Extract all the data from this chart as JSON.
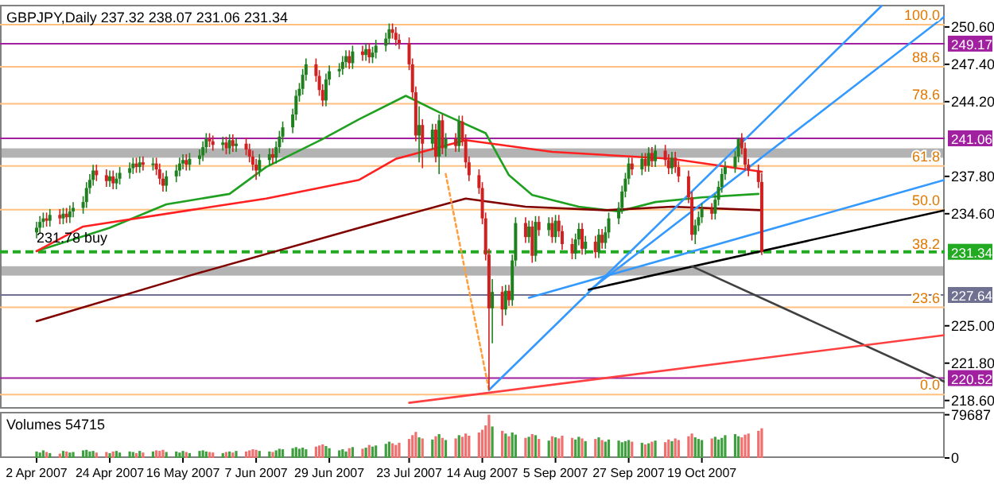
{
  "chart_data": [
    {
      "type": "candlestick",
      "title": "GBPJPY,Daily  237.32 238.07 231.06 231.34",
      "tick_labels": "y",
      "xlim": [
        "2007-03-22",
        "2007-12-31"
      ],
      "ylim": [
        217.9,
        252.5
      ],
      "y2lim": [
        -3.79,
        105.36
      ],
      "y2ticks": [
        {
          "value": 100,
          "label": "100.0"
        },
        88.6,
        78.6,
        61.8,
        {
          "value": 50,
          "label": "50.0"
        },
        38.2,
        23.6,
        {
          "value": 0,
          "label": "0.0"
        }
      ],
      "yticks": [
        {
          "value": 250.6,
          "label": "250.60"
        },
        {
          "value": 247.4,
          "label": "247.40"
        },
        {
          "value": 244.2,
          "label": "244.20"
        },
        {
          "value": 237.8,
          "label": "237.80"
        },
        {
          "value": 234.6,
          "label": "234.60"
        },
        {
          "value": 225.0,
          "label": "225.00"
        },
        {
          "value": 221.8,
          "label": "221.80"
        },
        {
          "value": 218.6,
          "label": "218.60"
        }
      ],
      "x": [
        "2007-04-02",
        "2007-04-03",
        "2007-04-04",
        "2007-04-05",
        "2007-04-06",
        "2007-04-09",
        "2007-04-10",
        "2007-04-11",
        "2007-04-12",
        "2007-04-13",
        "2007-04-16",
        "2007-04-17",
        "2007-04-18",
        "2007-04-19",
        "2007-04-20",
        "2007-04-23",
        "2007-04-24",
        "2007-04-25",
        "2007-04-26",
        "2007-04-27",
        "2007-04-30",
        "2007-05-01",
        "2007-05-02",
        "2007-05-03",
        "2007-05-04",
        "2007-05-07",
        "2007-05-08",
        "2007-05-09",
        "2007-05-10",
        "2007-05-11",
        "2007-05-14",
        "2007-05-15",
        "2007-05-16",
        "2007-05-17",
        "2007-05-18",
        "2007-05-21",
        "2007-05-22",
        "2007-05-23",
        "2007-05-24",
        "2007-05-25",
        "2007-05-28",
        "2007-05-29",
        "2007-05-30",
        "2007-05-31",
        "2007-06-01",
        "2007-06-04",
        "2007-06-05",
        "2007-06-06",
        "2007-06-07",
        "2007-06-08",
        "2007-06-11",
        "2007-06-12",
        "2007-06-13",
        "2007-06-14",
        "2007-06-15",
        "2007-06-18",
        "2007-06-19",
        "2007-06-20",
        "2007-06-21",
        "2007-06-22",
        "2007-06-25",
        "2007-06-26",
        "2007-06-27",
        "2007-06-28",
        "2007-06-29",
        "2007-07-02",
        "2007-07-03",
        "2007-07-04",
        "2007-07-05",
        "2007-07-06",
        "2007-07-09",
        "2007-07-10",
        "2007-07-11",
        "2007-07-12",
        "2007-07-13",
        "2007-07-16",
        "2007-07-17",
        "2007-07-18",
        "2007-07-19",
        "2007-07-20",
        "2007-07-23",
        "2007-07-24",
        "2007-07-25",
        "2007-07-26",
        "2007-07-27",
        "2007-07-30",
        "2007-07-31",
        "2007-08-01",
        "2007-08-02",
        "2007-08-03",
        "2007-08-06",
        "2007-08-07",
        "2007-08-08",
        "2007-08-09",
        "2007-08-10",
        "2007-08-13",
        "2007-08-14",
        "2007-08-15",
        "2007-08-16",
        "2007-08-17",
        "2007-08-20",
        "2007-08-21",
        "2007-08-22",
        "2007-08-23",
        "2007-08-24",
        "2007-08-27",
        "2007-08-28",
        "2007-08-29",
        "2007-08-30",
        "2007-08-31",
        "2007-09-03",
        "2007-09-04",
        "2007-09-05",
        "2007-09-06",
        "2007-09-07",
        "2007-09-10",
        "2007-09-11",
        "2007-09-12",
        "2007-09-13",
        "2007-09-14",
        "2007-09-17",
        "2007-09-18",
        "2007-09-19",
        "2007-09-20",
        "2007-09-21",
        "2007-09-24",
        "2007-09-25",
        "2007-09-26",
        "2007-09-27",
        "2007-09-28",
        "2007-10-01",
        "2007-10-02",
        "2007-10-03",
        "2007-10-04",
        "2007-10-05",
        "2007-10-08",
        "2007-10-09",
        "2007-10-10",
        "2007-10-11",
        "2007-10-12",
        "2007-10-15",
        "2007-10-16",
        "2007-10-17",
        "2007-10-18",
        "2007-10-19",
        "2007-10-22",
        "2007-10-23",
        "2007-10-24",
        "2007-10-25",
        "2007-10-26",
        "2007-10-29",
        "2007-10-30",
        "2007-10-31",
        "2007-11-01",
        "2007-11-02",
        "2007-11-05",
        "2007-11-06"
      ],
      "ohlc": [
        [
          233.0,
          233.9,
          232.5,
          233.4
        ],
        [
          233.4,
          234.4,
          232.9,
          233.9
        ],
        [
          233.9,
          234.7,
          233.4,
          234.2
        ],
        [
          234.2,
          234.7,
          233.5,
          234.0
        ],
        [
          234.0,
          235.0,
          233.5,
          234.5
        ],
        [
          234.5,
          235.0,
          233.7,
          234.2
        ],
        [
          234.2,
          235.1,
          233.7,
          234.6
        ],
        [
          234.6,
          235.1,
          233.8,
          234.3
        ],
        [
          234.3,
          235.3,
          233.8,
          234.8
        ],
        [
          234.8,
          235.6,
          234.3,
          235.1
        ],
        [
          235.1,
          236.1,
          234.6,
          235.6
        ],
        [
          235.6,
          237.3,
          235.1,
          236.8
        ],
        [
          236.8,
          238.0,
          236.3,
          237.5
        ],
        [
          237.5,
          238.8,
          237.0,
          238.3
        ],
        [
          238.3,
          238.8,
          237.4,
          237.9
        ],
        [
          237.9,
          238.4,
          236.9,
          237.4
        ],
        [
          237.4,
          238.3,
          236.9,
          237.8
        ],
        [
          237.8,
          238.3,
          236.7,
          237.2
        ],
        [
          237.2,
          238.1,
          236.7,
          237.6
        ],
        [
          237.6,
          238.6,
          237.1,
          238.1
        ],
        [
          238.1,
          239.0,
          237.6,
          238.5
        ],
        [
          238.5,
          239.4,
          238.0,
          238.9
        ],
        [
          238.9,
          239.4,
          238.1,
          238.6
        ],
        [
          238.6,
          239.5,
          238.1,
          239.0
        ],
        [
          239.0,
          239.5,
          238.3,
          238.8
        ],
        [
          238.8,
          239.4,
          238.3,
          238.9
        ],
        [
          238.9,
          239.4,
          237.9,
          238.4
        ],
        [
          238.4,
          238.9,
          237.1,
          237.6
        ],
        [
          237.6,
          238.1,
          236.5,
          237.0
        ],
        [
          237.0,
          238.3,
          236.5,
          237.8
        ],
        [
          237.8,
          238.8,
          237.3,
          238.3
        ],
        [
          238.3,
          239.4,
          237.8,
          238.9
        ],
        [
          238.9,
          239.7,
          238.4,
          239.2
        ],
        [
          239.2,
          239.7,
          238.3,
          238.8
        ],
        [
          238.8,
          239.8,
          238.3,
          239.3
        ],
        [
          239.3,
          240.1,
          238.8,
          239.6
        ],
        [
          239.6,
          240.8,
          239.1,
          240.3
        ],
        [
          240.3,
          241.5,
          239.8,
          241.0
        ],
        [
          241.0,
          241.5,
          240.3,
          240.8
        ],
        [
          240.8,
          241.3,
          240.0,
          240.5
        ],
        [
          240.5,
          241.2,
          240.0,
          240.7
        ],
        [
          240.7,
          241.2,
          239.7,
          240.2
        ],
        [
          240.2,
          241.4,
          239.7,
          240.9
        ],
        [
          240.9,
          241.4,
          239.9,
          240.4
        ],
        [
          240.4,
          241.1,
          239.9,
          240.6
        ],
        [
          240.6,
          241.1,
          239.6,
          240.1
        ],
        [
          240.1,
          240.6,
          239.0,
          239.5
        ],
        [
          239.5,
          240.0,
          238.3,
          238.8
        ],
        [
          238.8,
          239.3,
          237.5,
          238.3
        ],
        [
          238.3,
          239.7,
          237.8,
          239.2
        ],
        [
          239.2,
          240.2,
          238.7,
          239.7
        ],
        [
          239.7,
          240.2,
          238.9,
          239.4
        ],
        [
          239.4,
          240.8,
          238.9,
          240.3
        ],
        [
          240.3,
          241.7,
          239.8,
          241.2
        ],
        [
          241.2,
          242.5,
          240.7,
          242.0
        ],
        [
          242.0,
          243.6,
          241.5,
          243.1
        ],
        [
          243.1,
          245.2,
          242.6,
          244.7
        ],
        [
          244.7,
          245.8,
          244.2,
          245.3
        ],
        [
          245.3,
          247.0,
          244.8,
          246.5
        ],
        [
          246.5,
          247.9,
          246.0,
          247.4
        ],
        [
          247.4,
          247.9,
          245.9,
          246.4
        ],
        [
          246.4,
          246.9,
          244.7,
          245.2
        ],
        [
          245.2,
          245.7,
          243.8,
          244.3
        ],
        [
          244.3,
          246.6,
          243.8,
          246.1
        ],
        [
          246.1,
          247.3,
          245.6,
          246.8
        ],
        [
          246.8,
          247.5,
          246.3,
          247.0
        ],
        [
          247.0,
          248.1,
          246.5,
          247.6
        ],
        [
          247.6,
          248.6,
          247.1,
          248.1
        ],
        [
          248.1,
          248.6,
          247.0,
          247.5
        ],
        [
          247.5,
          249.0,
          247.0,
          248.5
        ],
        [
          248.5,
          249.0,
          247.7,
          248.2
        ],
        [
          248.2,
          249.2,
          247.7,
          248.7
        ],
        [
          248.7,
          249.2,
          247.5,
          248.0
        ],
        [
          248.0,
          248.9,
          247.5,
          248.4
        ],
        [
          248.4,
          249.5,
          247.9,
          249.0
        ],
        [
          249.0,
          250.1,
          248.5,
          249.6
        ],
        [
          249.6,
          250.9,
          249.1,
          250.4
        ],
        [
          250.4,
          250.9,
          249.6,
          250.1
        ],
        [
          250.1,
          250.6,
          249.0,
          249.5
        ],
        [
          249.5,
          250.0,
          248.7,
          249.2
        ],
        [
          249.2,
          249.7,
          246.9,
          247.4
        ],
        [
          247.4,
          247.9,
          244.5,
          245.0
        ],
        [
          245.0,
          245.5,
          240.8,
          241.3
        ],
        [
          241.3,
          243.8,
          239.0,
          242.2
        ],
        [
          242.2,
          242.7,
          238.5,
          240.6
        ],
        [
          240.6,
          242.3,
          240.1,
          241.8
        ],
        [
          241.8,
          242.3,
          239.0,
          239.5
        ],
        [
          239.5,
          243.1,
          238.0,
          242.6
        ],
        [
          242.6,
          243.1,
          239.7,
          240.2
        ],
        [
          240.2,
          241.5,
          239.5,
          241.0
        ],
        [
          241.0,
          241.5,
          239.9,
          240.4
        ],
        [
          240.4,
          243.0,
          239.9,
          242.5
        ],
        [
          242.5,
          243.0,
          240.4,
          240.9
        ],
        [
          240.9,
          241.4,
          238.5,
          239.0
        ],
        [
          239.0,
          239.5,
          237.4,
          237.9
        ],
        [
          237.9,
          238.4,
          236.3,
          236.8
        ],
        [
          236.8,
          237.3,
          233.7,
          234.2
        ],
        [
          234.2,
          234.7,
          230.6,
          231.1
        ],
        [
          231.1,
          231.6,
          219.5,
          226.5
        ],
        [
          226.5,
          229.0,
          223.5,
          227.9
        ],
        [
          227.9,
          228.4,
          225.0,
          226.4
        ],
        [
          226.4,
          228.5,
          225.9,
          228.0
        ],
        [
          228.0,
          228.5,
          226.7,
          227.2
        ],
        [
          227.2,
          231.1,
          226.7,
          230.6
        ],
        [
          230.6,
          234.3,
          230.1,
          233.8
        ],
        [
          233.8,
          234.3,
          232.1,
          232.6
        ],
        [
          232.6,
          234.0,
          232.1,
          233.5
        ],
        [
          233.5,
          234.0,
          230.4,
          231.0
        ],
        [
          231.0,
          234.4,
          230.5,
          233.9
        ],
        [
          233.9,
          234.4,
          232.7,
          233.2
        ],
        [
          233.2,
          234.3,
          232.7,
          233.8
        ],
        [
          233.8,
          234.3,
          232.1,
          232.6
        ],
        [
          232.6,
          234.5,
          232.1,
          234.0
        ],
        [
          234.0,
          234.5,
          232.6,
          233.1
        ],
        [
          233.1,
          233.6,
          231.5,
          232.0
        ],
        [
          232.0,
          232.5,
          230.7,
          231.2
        ],
        [
          231.2,
          232.9,
          230.7,
          232.4
        ],
        [
          232.4,
          233.8,
          231.9,
          233.3
        ],
        [
          233.3,
          233.8,
          231.1,
          231.6
        ],
        [
          231.6,
          232.7,
          231.1,
          232.2
        ],
        [
          232.2,
          232.7,
          230.8,
          231.3
        ],
        [
          231.3,
          233.3,
          230.8,
          232.8
        ],
        [
          232.8,
          233.3,
          231.6,
          232.1
        ],
        [
          232.1,
          233.5,
          231.6,
          233.0
        ],
        [
          233.0,
          234.7,
          232.5,
          234.2
        ],
        [
          234.2,
          235.6,
          233.7,
          235.1
        ],
        [
          235.1,
          237.0,
          234.6,
          236.5
        ],
        [
          236.5,
          238.1,
          236.0,
          237.6
        ],
        [
          237.6,
          239.4,
          237.1,
          238.9
        ],
        [
          238.9,
          239.4,
          237.9,
          238.4
        ],
        [
          238.4,
          239.8,
          237.9,
          239.3
        ],
        [
          239.3,
          239.8,
          238.2,
          238.7
        ],
        [
          238.7,
          240.3,
          238.2,
          239.8
        ],
        [
          239.8,
          240.3,
          238.6,
          239.1
        ],
        [
          239.1,
          240.5,
          238.6,
          240.0
        ],
        [
          240.0,
          240.5,
          238.7,
          239.2
        ],
        [
          239.2,
          239.7,
          238.0,
          238.5
        ],
        [
          238.5,
          239.9,
          238.0,
          239.4
        ],
        [
          239.4,
          239.9,
          238.1,
          238.6
        ],
        [
          238.6,
          239.1,
          237.3,
          237.8
        ],
        [
          237.8,
          238.3,
          235.5,
          236.0
        ],
        [
          236.0,
          236.5,
          232.3,
          232.8
        ],
        [
          232.8,
          234.1,
          232.0,
          233.6
        ],
        [
          233.6,
          234.8,
          233.1,
          234.3
        ],
        [
          234.3,
          235.5,
          233.8,
          235.0
        ],
        [
          235.0,
          235.5,
          234.1,
          234.6
        ],
        [
          234.6,
          236.3,
          234.1,
          235.8
        ],
        [
          235.8,
          237.4,
          235.3,
          236.9
        ],
        [
          236.9,
          238.5,
          236.4,
          238.0
        ],
        [
          238.0,
          239.1,
          237.5,
          238.6
        ],
        [
          238.6,
          240.0,
          238.1,
          239.5
        ],
        [
          239.5,
          241.1,
          239.0,
          241.0
        ],
        [
          241.0,
          241.5,
          239.7,
          240.2
        ],
        [
          240.2,
          240.7,
          238.3,
          238.8
        ],
        [
          238.8,
          239.3,
          237.8,
          238.3
        ],
        [
          238.3,
          238.8,
          236.8,
          237.32
        ],
        [
          237.32,
          238.07,
          231.06,
          231.34
        ]
      ],
      "colors": [
        "#208020",
        "#208020",
        "#208020",
        "#d02020",
        "#208020",
        "#d02020",
        "#208020",
        "#d02020",
        "#208020",
        "#208020",
        "#208020",
        "#208020",
        "#208020",
        "#208020",
        "#d02020",
        "#d02020",
        "#208020",
        "#d02020",
        "#208020",
        "#208020",
        "#208020",
        "#208020",
        "#d02020",
        "#208020",
        "#d02020",
        "#208020",
        "#d02020",
        "#d02020",
        "#d02020",
        "#208020",
        "#208020",
        "#208020",
        "#208020",
        "#d02020",
        "#208020",
        "#208020",
        "#208020",
        "#208020",
        "#d02020",
        "#d02020",
        "#208020",
        "#d02020",
        "#208020",
        "#d02020",
        "#208020",
        "#d02020",
        "#d02020",
        "#d02020",
        "#d02020",
        "#208020",
        "#208020",
        "#d02020",
        "#208020",
        "#208020",
        "#208020",
        "#208020",
        "#208020",
        "#208020",
        "#208020",
        "#208020",
        "#d02020",
        "#d02020",
        "#d02020",
        "#208020",
        "#208020",
        "#208020",
        "#208020",
        "#208020",
        "#d02020",
        "#208020",
        "#d02020",
        "#208020",
        "#d02020",
        "#208020",
        "#208020",
        "#208020",
        "#208020",
        "#d02020",
        "#d02020",
        "#d02020",
        "#d02020",
        "#d02020",
        "#d02020",
        "#208020",
        "#d02020",
        "#208020",
        "#d02020",
        "#208020",
        "#d02020",
        "#208020",
        "#d02020",
        "#208020",
        "#d02020",
        "#d02020",
        "#d02020",
        "#d02020",
        "#d02020",
        "#d02020",
        "#d02020",
        "#208020",
        "#d02020",
        "#208020",
        "#d02020",
        "#208020",
        "#208020",
        "#d02020",
        "#208020",
        "#d02020",
        "#208020",
        "#d02020",
        "#208020",
        "#d02020",
        "#208020",
        "#d02020",
        "#d02020",
        "#d02020",
        "#208020",
        "#208020",
        "#d02020",
        "#208020",
        "#d02020",
        "#208020",
        "#d02020",
        "#208020",
        "#208020",
        "#208020",
        "#208020",
        "#208020",
        "#208020",
        "#d02020",
        "#208020",
        "#d02020",
        "#208020",
        "#d02020",
        "#208020",
        "#d02020",
        "#d02020",
        "#208020",
        "#d02020",
        "#d02020",
        "#d02020",
        "#d02020",
        "#208020",
        "#208020",
        "#208020",
        "#d02020",
        "#208020",
        "#208020",
        "#208020",
        "#208020",
        "#208020",
        "#208020",
        "#d02020",
        "#d02020",
        "#d02020",
        "#d02020",
        "#d02020"
      ],
      "series": [
        {
          "type": "line",
          "color": "#20a020",
          "x": [
            "2007-04-02",
            "2007-04-24",
            "2007-05-11",
            "2007-05-30",
            "2007-06-10",
            "2007-06-27",
            "2007-07-08",
            "2007-07-22",
            "2007-08-01",
            "2007-08-15",
            "2007-08-22",
            "2007-08-29",
            "2007-09-12",
            "2007-09-24",
            "2007-10-05",
            "2007-10-19",
            "2007-11-05"
          ],
          "values": [
            231.4,
            233.4,
            235.4,
            236.3,
            238.6,
            241.0,
            242.7,
            244.7,
            243.3,
            241.5,
            237.9,
            236.2,
            235.2,
            234.8,
            235.6,
            236.0,
            236.3
          ]
        },
        {
          "type": "line",
          "color": "#ff2020",
          "x": [
            "2007-04-02",
            "2007-04-16",
            "2007-05-18",
            "2007-06-10",
            "2007-07-08",
            "2007-07-19",
            "2007-08-09",
            "2007-09-04",
            "2007-10-10",
            "2007-11-06"
          ],
          "values": [
            231.4,
            233.5,
            234.9,
            235.9,
            237.5,
            239.3,
            240.9,
            239.9,
            239.3,
            238.2
          ]
        },
        {
          "type": "line",
          "color": "#800000",
          "x": [
            "2007-04-02",
            "2007-05-18",
            "2007-07-08",
            "2007-08-09",
            "2007-08-27",
            "2007-09-20",
            "2007-10-10",
            "2007-11-06"
          ],
          "values": [
            225.4,
            229.3,
            233.4,
            235.9,
            235.2,
            234.9,
            235.2,
            234.9
          ]
        },
        {
          "type": "line",
          "color": "#3399ff",
          "x": [
            "2007-08-16",
            "2007-12-12"
          ],
          "values": [
            219.5,
            252.4
          ]
        },
        {
          "type": "line",
          "color": "#3399ff",
          "x": [
            "2007-09-15",
            "2007-12-31"
          ],
          "values": [
            228.0,
            251.5
          ]
        },
        {
          "type": "line",
          "color": "#3399ff",
          "x": [
            "2007-08-28",
            "2007-12-31"
          ],
          "values": [
            227.4,
            237.5
          ]
        },
        {
          "type": "line",
          "color": "#000000",
          "x": [
            "2007-09-15",
            "2007-12-31"
          ],
          "values": [
            228.1,
            234.9
          ]
        },
        {
          "type": "line",
          "color": "#404040",
          "x": [
            "2007-10-16",
            "2007-12-31"
          ],
          "values": [
            230.1,
            220.2
          ]
        },
        {
          "type": "line",
          "color": "#ff4040",
          "x": [
            "2007-07-23",
            "2007-12-31"
          ],
          "values": [
            218.4,
            224.2
          ]
        },
        {
          "type": "line",
          "color": "#ffa040",
          "line_style": "dotted",
          "x": [
            "2007-08-03",
            "2007-08-16"
          ],
          "values": [
            238.0,
            219.5
          ]
        }
      ],
      "ref_lines": [
        {
          "axis": "y2",
          "value": 100,
          "color": "#ffc080"
        },
        {
          "axis": "y2",
          "value": 88.6,
          "color": "#ffc080"
        },
        {
          "axis": "y2",
          "value": 78.6,
          "color": "#ffc080"
        },
        {
          "axis": "y2",
          "value": 61.8,
          "color": "#ffc080"
        },
        {
          "axis": "y2",
          "value": 50,
          "color": "#ffc080"
        },
        {
          "axis": "y2",
          "value": 23.6,
          "color": "#ffc080"
        },
        {
          "axis": "y2",
          "value": 0,
          "color": "#ffc080"
        },
        {
          "axis": "y",
          "value": 249.17,
          "label": "249.17",
          "color": "#a020a0"
        },
        {
          "axis": "y",
          "value": 241.06,
          "label": "241.06",
          "color": "#a020a0"
        },
        {
          "axis": "y",
          "value": 227.64,
          "label": "227.64",
          "color": "#707090"
        },
        {
          "axis": "y",
          "value": 220.52,
          "label": "220.52",
          "color": "#a020a0"
        },
        {
          "axis": "y",
          "value": 231.34,
          "label": "231.34",
          "color": "#22aa22",
          "line_style": "dashed"
        }
      ],
      "bands": [
        {
          "axis": "y",
          "from": 239.4,
          "to": 240.2,
          "color": "#808080"
        },
        {
          "axis": "y",
          "from": 229.3,
          "to": 230.1,
          "color": "#808080"
        }
      ],
      "annotations": [
        {
          "text": "231.78 buy",
          "x": "2007-04-02",
          "y": 231.34
        }
      ]
    },
    {
      "type": "bar",
      "title": "Volumes 54715",
      "xlim": [
        "2007-03-22",
        "2007-12-31"
      ],
      "ylim": [
        0,
        85000
      ],
      "yticks": [
        0,
        79687
      ],
      "xticks": [
        {
          "value": "2007-04-02",
          "label": "2 Apr 2007"
        },
        {
          "value": "2007-04-24",
          "label": "24 Apr 2007"
        },
        {
          "value": "2007-05-16",
          "label": "16 May 2007"
        },
        {
          "value": "2007-06-07",
          "label": "7 Jun 2007"
        },
        {
          "value": "2007-06-29",
          "label": "29 Jun 2007"
        },
        {
          "value": "2007-07-23",
          "label": "23 Jul 2007"
        },
        {
          "value": "2007-08-14",
          "label": "14 Aug 2007"
        },
        {
          "value": "2007-09-05",
          "label": "5 Sep 2007"
        },
        {
          "value": "2007-09-27",
          "label": "27 Sep 2007"
        },
        {
          "value": "2007-10-19",
          "label": "19 Oct 2007"
        }
      ],
      "x": [
        "2007-04-02",
        "2007-04-03",
        "2007-04-04",
        "2007-04-05",
        "2007-04-06",
        "2007-04-09",
        "2007-04-10",
        "2007-04-11",
        "2007-04-12",
        "2007-04-13",
        "2007-04-16",
        "2007-04-17",
        "2007-04-18",
        "2007-04-19",
        "2007-04-20",
        "2007-04-23",
        "2007-04-24",
        "2007-04-25",
        "2007-04-26",
        "2007-04-27",
        "2007-04-30",
        "2007-05-01",
        "2007-05-02",
        "2007-05-03",
        "2007-05-04",
        "2007-05-07",
        "2007-05-08",
        "2007-05-09",
        "2007-05-10",
        "2007-05-11",
        "2007-05-14",
        "2007-05-15",
        "2007-05-16",
        "2007-05-17",
        "2007-05-18",
        "2007-05-21",
        "2007-05-22",
        "2007-05-23",
        "2007-05-24",
        "2007-05-25",
        "2007-05-28",
        "2007-05-29",
        "2007-05-30",
        "2007-05-31",
        "2007-06-01",
        "2007-06-04",
        "2007-06-05",
        "2007-06-06",
        "2007-06-07",
        "2007-06-08",
        "2007-06-11",
        "2007-06-12",
        "2007-06-13",
        "2007-06-14",
        "2007-06-15",
        "2007-06-18",
        "2007-06-19",
        "2007-06-20",
        "2007-06-21",
        "2007-06-22",
        "2007-06-25",
        "2007-06-26",
        "2007-06-27",
        "2007-06-28",
        "2007-06-29",
        "2007-07-02",
        "2007-07-03",
        "2007-07-04",
        "2007-07-05",
        "2007-07-06",
        "2007-07-09",
        "2007-07-10",
        "2007-07-11",
        "2007-07-12",
        "2007-07-13",
        "2007-07-16",
        "2007-07-17",
        "2007-07-18",
        "2007-07-19",
        "2007-07-20",
        "2007-07-23",
        "2007-07-24",
        "2007-07-25",
        "2007-07-26",
        "2007-07-27",
        "2007-07-30",
        "2007-07-31",
        "2007-08-01",
        "2007-08-02",
        "2007-08-03",
        "2007-08-06",
        "2007-08-07",
        "2007-08-08",
        "2007-08-09",
        "2007-08-10",
        "2007-08-13",
        "2007-08-14",
        "2007-08-15",
        "2007-08-16",
        "2007-08-17",
        "2007-08-20",
        "2007-08-21",
        "2007-08-22",
        "2007-08-23",
        "2007-08-24",
        "2007-08-27",
        "2007-08-28",
        "2007-08-29",
        "2007-08-30",
        "2007-08-31",
        "2007-09-03",
        "2007-09-04",
        "2007-09-05",
        "2007-09-06",
        "2007-09-07",
        "2007-09-10",
        "2007-09-11",
        "2007-09-12",
        "2007-09-13",
        "2007-09-14",
        "2007-09-17",
        "2007-09-18",
        "2007-09-19",
        "2007-09-20",
        "2007-09-21",
        "2007-09-24",
        "2007-09-25",
        "2007-09-26",
        "2007-09-27",
        "2007-09-28",
        "2007-10-01",
        "2007-10-02",
        "2007-10-03",
        "2007-10-04",
        "2007-10-05",
        "2007-10-08",
        "2007-10-09",
        "2007-10-10",
        "2007-10-11",
        "2007-10-12",
        "2007-10-15",
        "2007-10-16",
        "2007-10-17",
        "2007-10-18",
        "2007-10-19",
        "2007-10-22",
        "2007-10-23",
        "2007-10-24",
        "2007-10-25",
        "2007-10-26",
        "2007-10-29",
        "2007-10-30",
        "2007-10-31",
        "2007-11-01",
        "2007-11-02",
        "2007-11-05",
        "2007-11-06"
      ],
      "values": [
        12000,
        10000,
        14000,
        11000,
        9000,
        8000,
        13000,
        12000,
        10000,
        11000,
        14000,
        15000,
        12000,
        13000,
        10000,
        11000,
        9000,
        12000,
        13000,
        10000,
        12000,
        11000,
        9000,
        13000,
        10000,
        12000,
        14000,
        13000,
        15000,
        11000,
        12000,
        10000,
        13000,
        11000,
        9000,
        13000,
        14000,
        12000,
        11000,
        10000,
        9000,
        11000,
        12000,
        10000,
        13000,
        12000,
        14000,
        16000,
        15000,
        13000,
        12000,
        11000,
        14000,
        17000,
        16000,
        18000,
        20000,
        17000,
        19000,
        16000,
        21000,
        23000,
        25000,
        22000,
        18000,
        14000,
        16000,
        12000,
        18000,
        20000,
        17000,
        19000,
        24000,
        21000,
        23000,
        26000,
        30000,
        27000,
        24000,
        28000,
        35000,
        42000,
        48000,
        38000,
        36000,
        34000,
        40000,
        44000,
        37000,
        33000,
        36000,
        42000,
        39000,
        45000,
        41000,
        47000,
        52000,
        60000,
        79687,
        58000,
        50000,
        45000,
        40000,
        47000,
        43000,
        37000,
        39000,
        44000,
        42000,
        35000,
        32000,
        40000,
        38000,
        36000,
        41000,
        37000,
        34000,
        39000,
        36000,
        31000,
        35000,
        38000,
        33000,
        30000,
        34000,
        32000,
        29000,
        31000,
        33000,
        30000,
        28000,
        25000,
        27000,
        30000,
        32000,
        29000,
        34000,
        31000,
        36000,
        33000,
        40000,
        45000,
        38000,
        35000,
        33000,
        36000,
        39000,
        34000,
        37000,
        42000,
        44000,
        40000,
        38000,
        43000,
        45000,
        50000,
        54715
      ],
      "colors": [
        "#40a040",
        "#40a040",
        "#40a040",
        "#f07070",
        "#40a040",
        "#f07070",
        "#40a040",
        "#f07070",
        "#40a040",
        "#40a040",
        "#40a040",
        "#40a040",
        "#40a040",
        "#40a040",
        "#f07070",
        "#f07070",
        "#40a040",
        "#f07070",
        "#40a040",
        "#40a040",
        "#40a040",
        "#40a040",
        "#f07070",
        "#40a040",
        "#f07070",
        "#40a040",
        "#f07070",
        "#f07070",
        "#f07070",
        "#40a040",
        "#40a040",
        "#40a040",
        "#40a040",
        "#f07070",
        "#40a040",
        "#40a040",
        "#40a040",
        "#40a040",
        "#f07070",
        "#f07070",
        "#40a040",
        "#f07070",
        "#40a040",
        "#f07070",
        "#40a040",
        "#f07070",
        "#f07070",
        "#f07070",
        "#f07070",
        "#40a040",
        "#40a040",
        "#f07070",
        "#40a040",
        "#40a040",
        "#40a040",
        "#40a040",
        "#40a040",
        "#40a040",
        "#40a040",
        "#40a040",
        "#f07070",
        "#f07070",
        "#f07070",
        "#40a040",
        "#40a040",
        "#40a040",
        "#40a040",
        "#40a040",
        "#f07070",
        "#40a040",
        "#f07070",
        "#40a040",
        "#f07070",
        "#40a040",
        "#40a040",
        "#40a040",
        "#40a040",
        "#f07070",
        "#f07070",
        "#f07070",
        "#f07070",
        "#f07070",
        "#f07070",
        "#40a040",
        "#f07070",
        "#40a040",
        "#f07070",
        "#40a040",
        "#f07070",
        "#40a040",
        "#f07070",
        "#40a040",
        "#f07070",
        "#f07070",
        "#f07070",
        "#f07070",
        "#f07070",
        "#f07070",
        "#f07070",
        "#40a040",
        "#f07070",
        "#40a040",
        "#f07070",
        "#40a040",
        "#40a040",
        "#f07070",
        "#40a040",
        "#f07070",
        "#40a040",
        "#f07070",
        "#40a040",
        "#f07070",
        "#40a040",
        "#f07070",
        "#f07070",
        "#f07070",
        "#40a040",
        "#40a040",
        "#f07070",
        "#40a040",
        "#f07070",
        "#40a040",
        "#f07070",
        "#40a040",
        "#40a040",
        "#40a040",
        "#40a040",
        "#40a040",
        "#40a040",
        "#f07070",
        "#40a040",
        "#f07070",
        "#40a040",
        "#f07070",
        "#40a040",
        "#f07070",
        "#f07070",
        "#40a040",
        "#f07070",
        "#f07070",
        "#f07070",
        "#f07070",
        "#40a040",
        "#40a040",
        "#40a040",
        "#f07070",
        "#40a040",
        "#40a040",
        "#40a040",
        "#40a040",
        "#40a040",
        "#40a040",
        "#f07070",
        "#f07070",
        "#f07070",
        "#f07070",
        "#f07070"
      ]
    }
  ]
}
